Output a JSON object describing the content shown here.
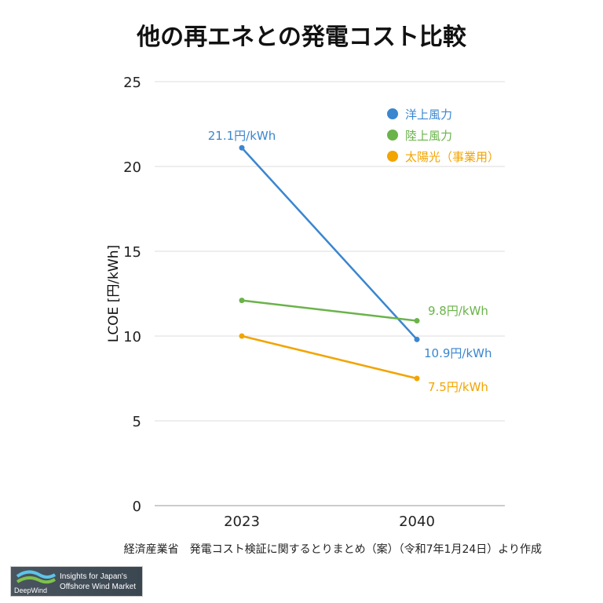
{
  "chart_data": {
    "type": "line",
    "title": "他の再エネとの発電コスト比較",
    "ylabel": "LCOE [円/kWh]",
    "xlabel": "",
    "categories": [
      "2023",
      "2040"
    ],
    "ylim": [
      0,
      25
    ],
    "yticks": [
      0,
      5,
      10,
      15,
      20,
      25
    ],
    "grid": true,
    "legend_position": "top-right",
    "series": [
      {
        "name": "洋上風力",
        "color": "#3a86d0",
        "values": [
          21.1,
          9.8
        ]
      },
      {
        "name": "陸上風力",
        "color": "#6ab34a",
        "values": [
          12.1,
          10.9
        ]
      },
      {
        "name": "太陽光（事業用）",
        "color": "#f2a400",
        "values": [
          10.0,
          7.5
        ]
      }
    ],
    "annotations": [
      {
        "text": "21.1円/kWh",
        "color": "#3a86d0"
      },
      {
        "text": "9.8円/kWh",
        "color": "#6ab34a"
      },
      {
        "text": "10.9円/kWh",
        "color": "#3a86d0"
      },
      {
        "text": "7.5円/kWh",
        "color": "#f2a400"
      }
    ]
  },
  "source": "経済産業省　発電コスト検証に関するとりまとめ（案）（令和7年1月24日）より作成",
  "logo": {
    "brand": "DeepWind",
    "tagline1": "Insights for Japan's",
    "tagline2": "Offshore Wind Market"
  }
}
